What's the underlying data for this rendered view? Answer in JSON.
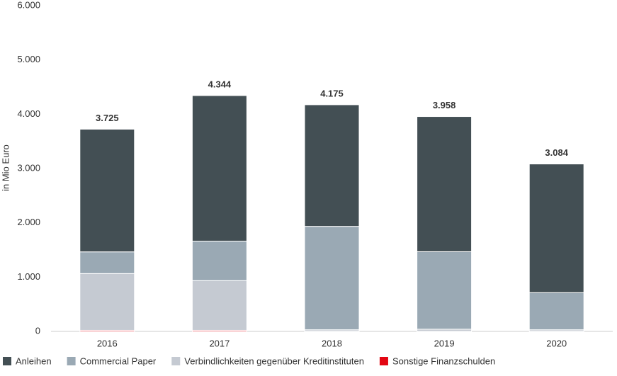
{
  "chart_data": {
    "type": "stacked_bar",
    "y_label": "in Mio Euro",
    "categories": [
      "2016",
      "2017",
      "2018",
      "2019",
      "2020"
    ],
    "series": [
      {
        "name": "Anleihen",
        "color": "#434f54",
        "values": [
          2260,
          2682,
          2240,
          2490,
          2370
        ]
      },
      {
        "name": "Commercial Paper",
        "color": "#9aa9b4",
        "values": [
          400,
          727,
          1905,
          1428,
          684
        ]
      },
      {
        "name": "Verbindlichkeiten gegenüber Kreditinstituten",
        "color": "#c5cad2",
        "values": [
          1045,
          915,
          30,
          40,
          30
        ]
      },
      {
        "name": "Sonstige Finanzschulden",
        "color": "#e30613",
        "values": [
          20,
          20,
          0,
          0,
          0
        ]
      }
    ],
    "totals": {
      "values": [
        3725,
        4344,
        4175,
        3958,
        3084
      ],
      "value_labels": [
        "3.725",
        "4.344",
        "4.175",
        "3.958",
        "3.084"
      ]
    },
    "ylim": [
      0,
      6000
    ],
    "yticks": [
      0,
      {
        "value": 1000,
        "label": "1.000"
      },
      {
        "value": 2000,
        "label": "2.000"
      },
      {
        "value": 3000,
        "label": "3.000"
      },
      {
        "value": 4000,
        "label": "4.000"
      },
      {
        "value": 5000,
        "label": "5.000"
      },
      {
        "value": 6000,
        "label": "6.000"
      }
    ],
    "grid": false
  }
}
